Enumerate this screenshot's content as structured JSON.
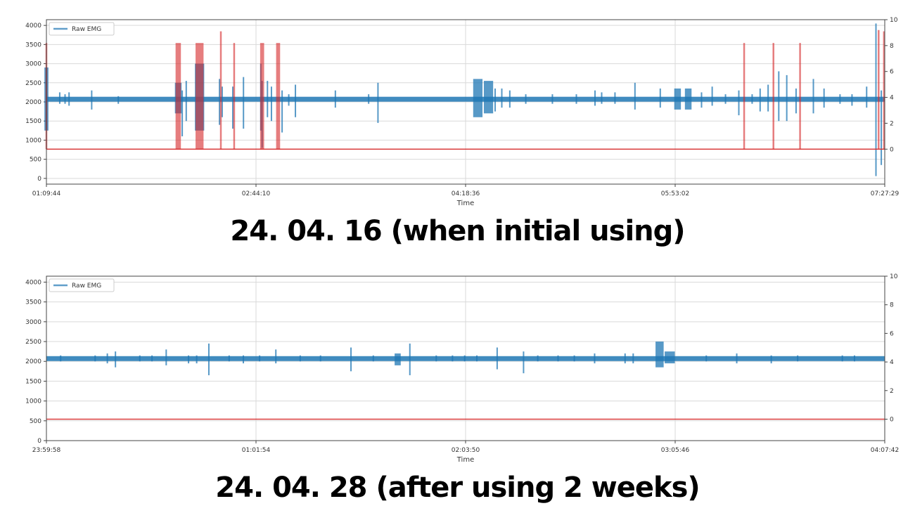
{
  "colors": {
    "raw": "#1f77b4",
    "event": "#d62728",
    "grid": "#d9d9d9",
    "frame": "#444444"
  },
  "captions": {
    "first": "24. 04. 16 (when initial using)",
    "second": "24. 04. 28 (after using 2 weeks)"
  },
  "chart_data": [
    {
      "type": "line",
      "legend": [
        "Raw EMG"
      ],
      "legend_position": "top-left",
      "xlabel": "Time",
      "x_ticks": [
        "01:09:44",
        "02:44:10",
        "04:18:36",
        "05:53:02",
        "07:27:29"
      ],
      "y_left_ticks": [
        0,
        500,
        1000,
        1500,
        2000,
        2500,
        3000,
        3500,
        4000
      ],
      "y_left_lim": [
        -150,
        4150
      ],
      "y_right_ticks": [
        0,
        2,
        4,
        6,
        8,
        10
      ],
      "y_right_lim": [
        -2.7,
        10
      ],
      "grid": true,
      "x_range_hours": [
        0,
        6.296
      ],
      "baseline_value": 2070,
      "series": [
        {
          "name": "Raw EMG",
          "axis": "left",
          "bursts": [
            {
              "t": 0.0,
              "low": 1250,
              "high": 2900,
              "w": 0.03
            },
            {
              "t": 0.1,
              "low": 1950,
              "high": 2250
            },
            {
              "t": 0.14,
              "low": 1950,
              "high": 2200
            },
            {
              "t": 0.17,
              "low": 1900,
              "high": 2250
            },
            {
              "t": 0.34,
              "low": 1800,
              "high": 2300
            },
            {
              "t": 0.54,
              "low": 1950,
              "high": 2150
            },
            {
              "t": 0.99,
              "low": 1700,
              "high": 2500,
              "w": 0.05
            },
            {
              "t": 1.02,
              "low": 1100,
              "high": 2300
            },
            {
              "t": 1.05,
              "low": 1500,
              "high": 2550
            },
            {
              "t": 1.15,
              "low": 1250,
              "high": 3000,
              "w": 0.07
            },
            {
              "t": 1.3,
              "low": 1400,
              "high": 2600
            },
            {
              "t": 1.32,
              "low": 1600,
              "high": 2400
            },
            {
              "t": 1.4,
              "low": 1300,
              "high": 2400
            },
            {
              "t": 1.48,
              "low": 1300,
              "high": 2650
            },
            {
              "t": 1.61,
              "low": 1250,
              "high": 3000
            },
            {
              "t": 1.62,
              "low": 800,
              "high": 2550
            },
            {
              "t": 1.66,
              "low": 1600,
              "high": 2550
            },
            {
              "t": 1.69,
              "low": 1500,
              "high": 2400
            },
            {
              "t": 1.77,
              "low": 1200,
              "high": 2300
            },
            {
              "t": 1.82,
              "low": 1900,
              "high": 2200
            },
            {
              "t": 1.87,
              "low": 1600,
              "high": 2450
            },
            {
              "t": 2.17,
              "low": 1850,
              "high": 2300
            },
            {
              "t": 2.42,
              "low": 1950,
              "high": 2200
            },
            {
              "t": 2.49,
              "low": 1450,
              "high": 2500
            },
            {
              "t": 3.24,
              "low": 1600,
              "high": 2600,
              "w": 0.07
            },
            {
              "t": 3.32,
              "low": 1700,
              "high": 2550,
              "w": 0.07
            },
            {
              "t": 3.37,
              "low": 1750,
              "high": 2350
            },
            {
              "t": 3.42,
              "low": 1850,
              "high": 2350
            },
            {
              "t": 3.48,
              "low": 1850,
              "high": 2300
            },
            {
              "t": 3.6,
              "low": 1950,
              "high": 2200
            },
            {
              "t": 3.8,
              "low": 1950,
              "high": 2200
            },
            {
              "t": 3.98,
              "low": 1950,
              "high": 2200
            },
            {
              "t": 4.12,
              "low": 1900,
              "high": 2300
            },
            {
              "t": 4.17,
              "low": 1950,
              "high": 2250
            },
            {
              "t": 4.27,
              "low": 1950,
              "high": 2250
            },
            {
              "t": 4.42,
              "low": 1800,
              "high": 2500
            },
            {
              "t": 4.61,
              "low": 1850,
              "high": 2350
            },
            {
              "t": 4.74,
              "low": 1800,
              "high": 2350,
              "w": 0.05
            },
            {
              "t": 4.82,
              "low": 1800,
              "high": 2350,
              "w": 0.05
            },
            {
              "t": 4.92,
              "low": 1850,
              "high": 2250
            },
            {
              "t": 5.0,
              "low": 1900,
              "high": 2400
            },
            {
              "t": 5.1,
              "low": 1950,
              "high": 2200
            },
            {
              "t": 5.2,
              "low": 1650,
              "high": 2300
            },
            {
              "t": 5.3,
              "low": 1950,
              "high": 2200
            },
            {
              "t": 5.36,
              "low": 1750,
              "high": 2350
            },
            {
              "t": 5.42,
              "low": 1750,
              "high": 2450
            },
            {
              "t": 5.5,
              "low": 1500,
              "high": 2800
            },
            {
              "t": 5.56,
              "low": 1500,
              "high": 2700
            },
            {
              "t": 5.63,
              "low": 1700,
              "high": 2350
            },
            {
              "t": 5.76,
              "low": 1700,
              "high": 2600
            },
            {
              "t": 5.84,
              "low": 1850,
              "high": 2350
            },
            {
              "t": 5.96,
              "low": 1950,
              "high": 2200
            },
            {
              "t": 6.05,
              "low": 1900,
              "high": 2200
            },
            {
              "t": 6.16,
              "low": 1850,
              "high": 2400
            },
            {
              "t": 6.23,
              "low": 60,
              "high": 4050
            },
            {
              "t": 6.27,
              "low": 350,
              "high": 2300
            }
          ]
        },
        {
          "name": "",
          "axis": "right",
          "events": [
            {
              "t": 0.0,
              "h": 8.2
            },
            {
              "t": 0.99,
              "h": 8.2,
              "w": 0.04
            },
            {
              "t": 1.15,
              "h": 8.2,
              "w": 0.06
            },
            {
              "t": 1.31,
              "h": 9.1
            },
            {
              "t": 1.41,
              "h": 8.2
            },
            {
              "t": 1.62,
              "h": 8.2,
              "w": 0.03
            },
            {
              "t": 1.74,
              "h": 8.2,
              "w": 0.03
            },
            {
              "t": 5.24,
              "h": 8.2
            },
            {
              "t": 5.46,
              "h": 8.2
            },
            {
              "t": 5.66,
              "h": 8.2
            },
            {
              "t": 6.25,
              "h": 9.2
            },
            {
              "t": 6.29,
              "h": 9.1
            }
          ]
        }
      ]
    },
    {
      "type": "line",
      "legend": [
        "Raw EMG"
      ],
      "legend_position": "top-left",
      "xlabel": "Time",
      "x_ticks": [
        "23:59:58",
        "01:01:54",
        "02:03:50",
        "03:05:46",
        "04:07:42"
      ],
      "y_left_ticks": [
        0,
        500,
        1000,
        1500,
        2000,
        2500,
        3000,
        3500,
        4000
      ],
      "y_left_lim": [
        0,
        4150
      ],
      "y_right_ticks": [
        0,
        2,
        4,
        6,
        8,
        10
      ],
      "y_right_lim": [
        -1.5,
        10
      ],
      "grid": true,
      "x_range_hours": [
        0,
        4.129
      ],
      "baseline_value": 2070,
      "series": [
        {
          "name": "Raw EMG",
          "axis": "left",
          "bursts": [
            {
              "t": 0.07,
              "low": 2000,
              "high": 2150
            },
            {
              "t": 0.24,
              "low": 2000,
              "high": 2150
            },
            {
              "t": 0.3,
              "low": 1950,
              "high": 2200
            },
            {
              "t": 0.34,
              "low": 1850,
              "high": 2250
            },
            {
              "t": 0.46,
              "low": 2000,
              "high": 2150
            },
            {
              "t": 0.52,
              "low": 2000,
              "high": 2150
            },
            {
              "t": 0.59,
              "low": 1900,
              "high": 2300
            },
            {
              "t": 0.7,
              "low": 1950,
              "high": 2150
            },
            {
              "t": 0.74,
              "low": 1950,
              "high": 2150
            },
            {
              "t": 0.8,
              "low": 1650,
              "high": 2450
            },
            {
              "t": 0.9,
              "low": 2000,
              "high": 2150
            },
            {
              "t": 0.97,
              "low": 1950,
              "high": 2150
            },
            {
              "t": 1.05,
              "low": 2000,
              "high": 2150
            },
            {
              "t": 1.13,
              "low": 1950,
              "high": 2300
            },
            {
              "t": 1.25,
              "low": 2000,
              "high": 2150
            },
            {
              "t": 1.35,
              "low": 2000,
              "high": 2150
            },
            {
              "t": 1.5,
              "low": 1750,
              "high": 2350
            },
            {
              "t": 1.61,
              "low": 2000,
              "high": 2150
            },
            {
              "t": 1.73,
              "low": 1900,
              "high": 2200,
              "w": 0.03
            },
            {
              "t": 1.79,
              "low": 1650,
              "high": 2450
            },
            {
              "t": 1.92,
              "low": 2000,
              "high": 2150
            },
            {
              "t": 2.0,
              "low": 2000,
              "high": 2150
            },
            {
              "t": 2.06,
              "low": 2000,
              "high": 2150
            },
            {
              "t": 2.12,
              "low": 2000,
              "high": 2150
            },
            {
              "t": 2.22,
              "low": 1800,
              "high": 2350
            },
            {
              "t": 2.35,
              "low": 1700,
              "high": 2250
            },
            {
              "t": 2.42,
              "low": 2000,
              "high": 2150
            },
            {
              "t": 2.52,
              "low": 2000,
              "high": 2150
            },
            {
              "t": 2.6,
              "low": 2000,
              "high": 2150
            },
            {
              "t": 2.7,
              "low": 1950,
              "high": 2200
            },
            {
              "t": 2.85,
              "low": 1950,
              "high": 2200
            },
            {
              "t": 2.89,
              "low": 1950,
              "high": 2200
            },
            {
              "t": 3.02,
              "low": 1850,
              "high": 2500,
              "w": 0.04
            },
            {
              "t": 3.07,
              "low": 1950,
              "high": 2250,
              "w": 0.05
            },
            {
              "t": 3.25,
              "low": 2000,
              "high": 2150
            },
            {
              "t": 3.4,
              "low": 1950,
              "high": 2200
            },
            {
              "t": 3.57,
              "low": 1950,
              "high": 2150
            },
            {
              "t": 3.7,
              "low": 2000,
              "high": 2150
            },
            {
              "t": 3.92,
              "low": 2000,
              "high": 2150
            },
            {
              "t": 3.98,
              "low": 2000,
              "high": 2150
            }
          ]
        },
        {
          "name": "",
          "axis": "right",
          "events": []
        }
      ]
    }
  ]
}
